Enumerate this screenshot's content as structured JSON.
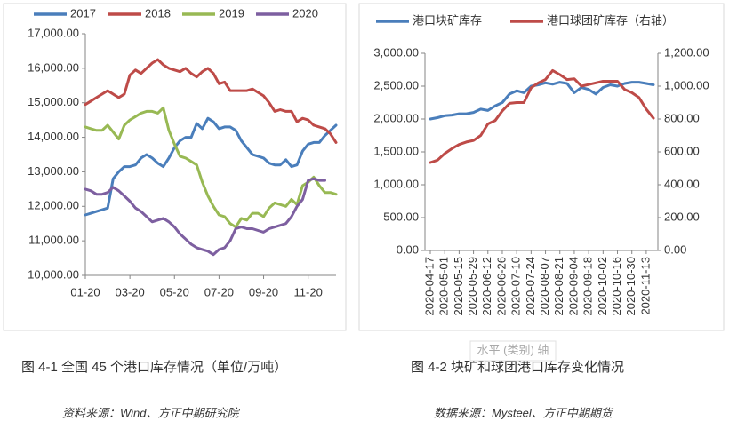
{
  "chart_data": [
    {
      "type": "line",
      "categories": [
        "01-20",
        null,
        null,
        null,
        null,
        null,
        null,
        null,
        "03-20",
        null,
        null,
        null,
        null,
        null,
        null,
        null,
        "05-20",
        null,
        null,
        null,
        null,
        null,
        null,
        null,
        "07-20",
        null,
        null,
        null,
        null,
        null,
        null,
        null,
        "09-20",
        null,
        null,
        null,
        null,
        null,
        null,
        null,
        "11-20",
        null,
        null,
        null,
        null,
        null
      ],
      "ylim": [
        10000,
        17000
      ],
      "yticks": [
        {
          "value": 10000,
          "label": "10,000.00"
        },
        {
          "value": 11000,
          "label": "11,000.00"
        },
        {
          "value": 12000,
          "label": "12,000.00"
        },
        {
          "value": 13000,
          "label": "13,000.00"
        },
        {
          "value": 14000,
          "label": "14,000.00"
        },
        {
          "value": 15000,
          "label": "15,000.00"
        },
        {
          "value": 16000,
          "label": "16,000.00"
        },
        {
          "value": 17000,
          "label": "17,000.00"
        }
      ],
      "grid": false,
      "legend": "top",
      "series": [
        {
          "name": "2017",
          "color": "#4a7ebb",
          "values": [
            11750,
            11800,
            11850,
            11900,
            11950,
            12800,
            13000,
            13150,
            13150,
            13200,
            13400,
            13500,
            13400,
            13250,
            13150,
            13400,
            13700,
            13900,
            14000,
            14000,
            14400,
            14250,
            14550,
            14450,
            14250,
            14300,
            14300,
            14200,
            13900,
            13700,
            13500,
            13450,
            13400,
            13250,
            13200,
            13200,
            13350,
            13150,
            13200,
            13600,
            13800,
            13850,
            13850,
            14050,
            14200,
            14350
          ]
        },
        {
          "name": "2018",
          "color": "#be4b48",
          "values": [
            14950,
            15050,
            15150,
            15250,
            15350,
            15250,
            15150,
            15250,
            15800,
            15950,
            15850,
            16000,
            16150,
            16250,
            16100,
            16000,
            15950,
            15900,
            16000,
            15850,
            15750,
            15900,
            16000,
            15850,
            15550,
            15600,
            15350,
            15350,
            15350,
            15350,
            15400,
            15300,
            15200,
            15000,
            14750,
            14800,
            14750,
            14750,
            14450,
            14550,
            14500,
            14350,
            14300,
            14250,
            14100,
            13850
          ]
        },
        {
          "name": "2019",
          "color": "#98b954",
          "values": [
            14300,
            14250,
            14200,
            14200,
            14350,
            14150,
            13950,
            14350,
            14500,
            14600,
            14700,
            14750,
            14750,
            14700,
            14850,
            14200,
            13800,
            13450,
            13400,
            13300,
            13200,
            12700,
            12300,
            12000,
            11750,
            11700,
            11500,
            11400,
            11650,
            11600,
            11800,
            11800,
            11700,
            11950,
            12100,
            12050,
            12000,
            12200,
            12050,
            12600,
            12700,
            12850,
            12600,
            12400,
            12400,
            12350
          ]
        },
        {
          "name": "2020",
          "color": "#7d5fa0",
          "values": [
            12500,
            12450,
            12350,
            12350,
            12400,
            12550,
            12450,
            12300,
            12150,
            11950,
            11850,
            11700,
            11550,
            11600,
            11650,
            11550,
            11400,
            11200,
            11050,
            10900,
            10800,
            10750,
            10700,
            10600,
            10750,
            10800,
            11000,
            11350,
            11400,
            11350,
            11350,
            11300,
            11250,
            11350,
            11400,
            11450,
            11500,
            11700,
            12000,
            12200,
            12750,
            12800,
            12750,
            12750,
            null,
            null
          ]
        }
      ]
    },
    {
      "type": "line",
      "categories": [
        "2020-04-17",
        null,
        "2020-05-01",
        null,
        "2020-05-15",
        null,
        "2020-05-29",
        null,
        "2020-06-12",
        null,
        "2020-06-26",
        null,
        "2020-07-10",
        null,
        "2020-07-24",
        null,
        "2020-08-07",
        null,
        "2020-08-21",
        null,
        "2020-09-04",
        null,
        "2020-09-18",
        null,
        "2020-10-02",
        null,
        "2020-10-16",
        null,
        "2020-10-30",
        null,
        "2020-11-13",
        null
      ],
      "x_label": "水平 (类别) 轴",
      "ylim": [
        0,
        3000
      ],
      "yticks": [
        {
          "value": 0,
          "label": "0.00"
        },
        {
          "value": 500,
          "label": "500.00"
        },
        {
          "value": 1000,
          "label": "1,000.00"
        },
        {
          "value": 1500,
          "label": "1,500.00"
        },
        {
          "value": 2000,
          "label": "2,000.00"
        },
        {
          "value": 2500,
          "label": "2,500.00"
        },
        {
          "value": 3000,
          "label": "3,000.00"
        }
      ],
      "y2lim": [
        0,
        1200
      ],
      "y2ticks": [
        {
          "value": 0,
          "label": "0.00"
        },
        {
          "value": 200,
          "label": "200.00"
        },
        {
          "value": 400,
          "label": "400.00"
        },
        {
          "value": 600,
          "label": "600.00"
        },
        {
          "value": 800,
          "label": "800.00"
        },
        {
          "value": 1000,
          "label": "1,000.00"
        },
        {
          "value": 1200,
          "label": "1,200.00"
        }
      ],
      "grid": false,
      "legend": "top",
      "series": [
        {
          "name": "港口块矿库存",
          "color": "#4a7ebb",
          "values": [
            2000,
            2020,
            2050,
            2060,
            2080,
            2080,
            2100,
            2150,
            2130,
            2200,
            2250,
            2380,
            2430,
            2400,
            2500,
            2520,
            2550,
            2530,
            2560,
            2540,
            2400,
            2480,
            2450,
            2380,
            2480,
            2520,
            2500,
            2540,
            2560,
            2560,
            2540,
            2520
          ]
        },
        {
          "name": "港口球团矿库存（右轴）",
          "color": "#be4b48",
          "axis": "y2",
          "values": [
            535,
            550,
            590,
            620,
            645,
            660,
            670,
            700,
            770,
            790,
            850,
            895,
            900,
            900,
            990,
            1020,
            1040,
            1095,
            1070,
            1040,
            1045,
            1000,
            1010,
            1020,
            1030,
            1030,
            1030,
            980,
            960,
            930,
            860,
            805
          ]
        }
      ]
    }
  ],
  "captions": [
    {
      "title": "图 4-1  全国 45 个港口库存情况（单位/万吨）",
      "source": "资料来源：Wind、方正中期研究院"
    },
    {
      "title": "图 4-2  块矿和球团港口库存变化情况",
      "source": "数据来源：Mysteel、方正中期期货"
    }
  ]
}
